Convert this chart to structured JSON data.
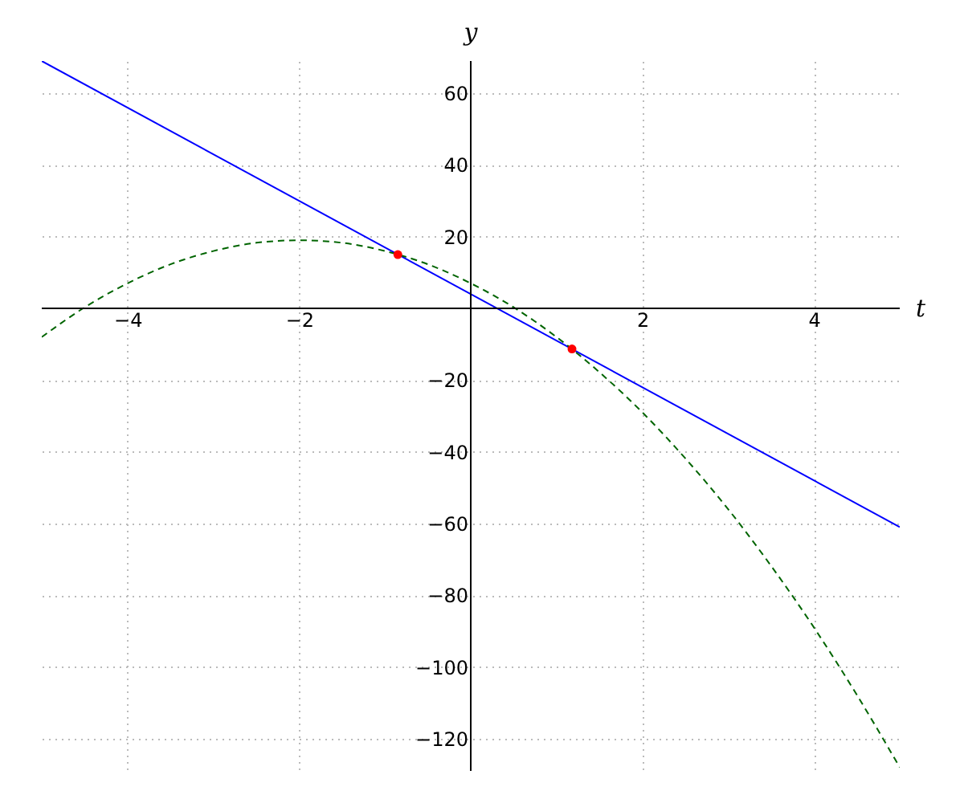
{
  "chart_data": {
    "type": "line",
    "xlabel": "t",
    "ylabel": "y",
    "xlim": [
      -5,
      5
    ],
    "ylim": [
      -129,
      69
    ],
    "xticks": [
      -4,
      -2,
      2,
      4
    ],
    "yticks": [
      -120,
      -100,
      -80,
      -60,
      -40,
      -20,
      20,
      40,
      60
    ],
    "grid": true,
    "legend": false,
    "series": [
      {
        "color": "#0000ff",
        "line_style": "solid",
        "x": [
          -5,
          5
        ],
        "values": [
          69,
          -61
        ]
      },
      {
        "color": "#006400",
        "line_style": "dashed",
        "x": [
          -5,
          -4.5,
          -4,
          -3.5,
          -3,
          -2.5,
          -2,
          -1.5,
          -1,
          -0.5,
          0,
          0.5,
          1,
          1.5,
          2,
          2.5,
          3,
          3.5,
          4,
          4.5,
          5
        ],
        "values": [
          -8,
          0.3,
          7,
          12.3,
          16,
          18.3,
          19,
          18.3,
          16,
          12.3,
          7,
          0.3,
          -8,
          -17.8,
          -29,
          -41.8,
          -56,
          -71.8,
          -89,
          -107.8,
          -128
        ]
      },
      {
        "type": "scatter",
        "color": "#ff0000",
        "marker": "circle",
        "x": [
          -0.85,
          1.18
        ],
        "values": [
          15,
          -11.3
        ]
      }
    ]
  }
}
